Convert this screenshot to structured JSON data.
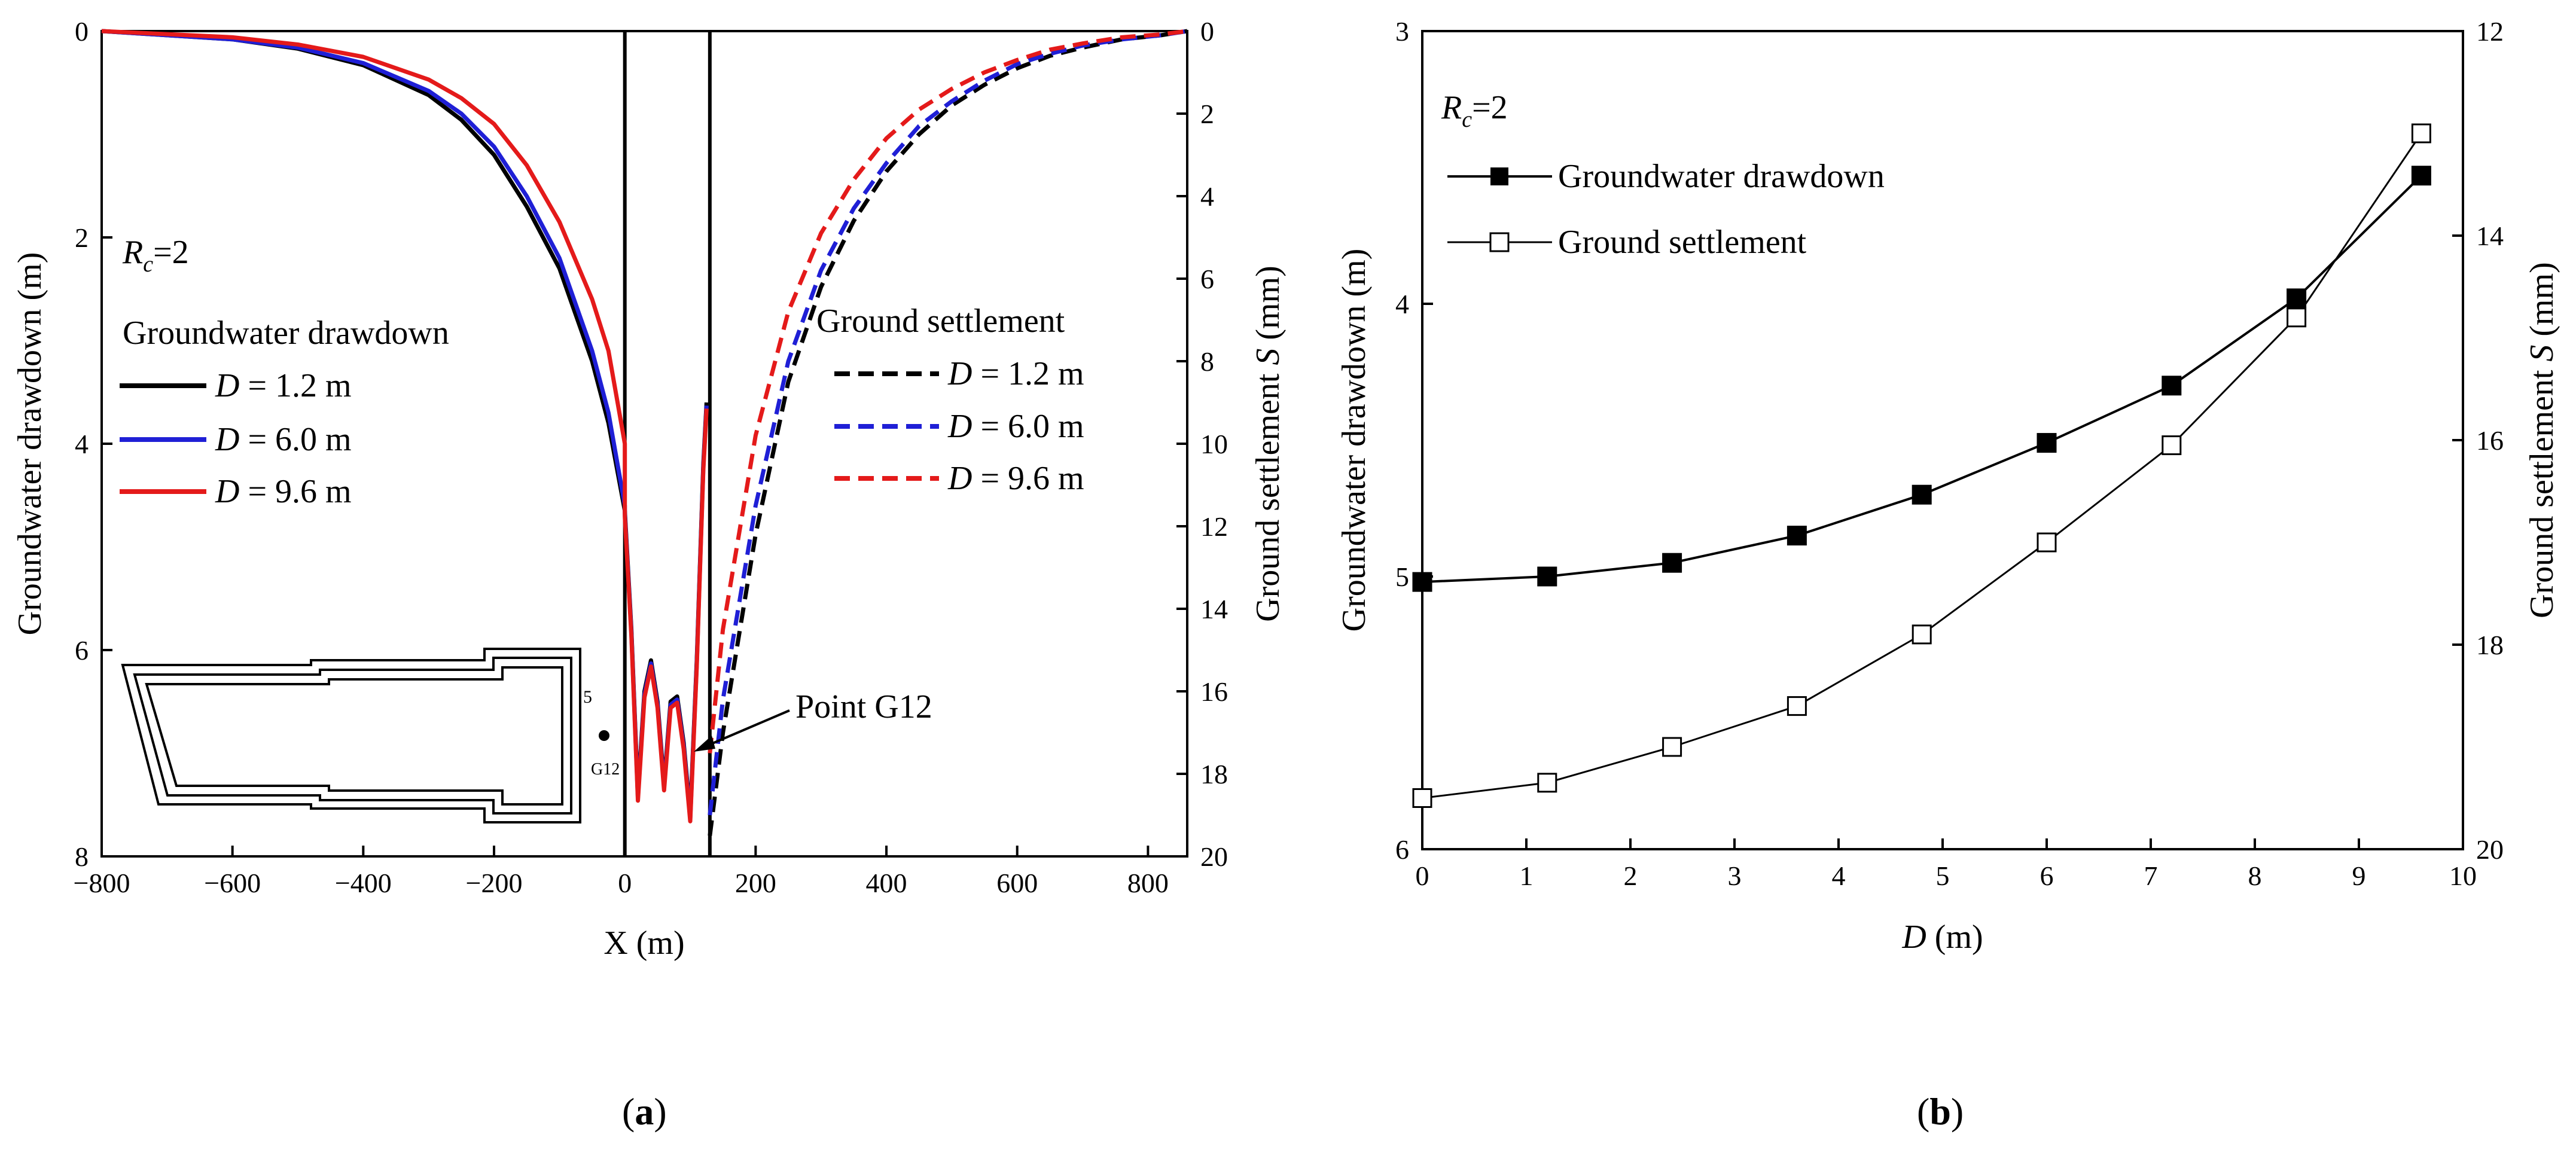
{
  "chart_data": [
    {
      "panel": "(a)",
      "panel_label": "a",
      "type": "line",
      "x": [
        -800,
        -700,
        -600,
        -500,
        -400,
        -300,
        -250,
        -200,
        -150,
        -100,
        -50,
        -25,
        0
      ],
      "ylim": [
        0,
        8
      ],
      "y2lim": [
        0,
        20
      ],
      "xlim": [
        -800,
        860
      ],
      "xlabel": "X (m)",
      "ylabel": "Groundwater drawdown (m)",
      "y2label_main": "Ground settlement ",
      "y2label_var": "S",
      "y2label_unit": " (mm)",
      "x_ticks": [
        "−800",
        "−600",
        "−400",
        "−200",
        "0",
        "200",
        "400",
        "600",
        "800"
      ],
      "x_tick_values": [
        -800,
        -600,
        -400,
        -200,
        0,
        200,
        400,
        600,
        800
      ],
      "y_ticks": [
        "0",
        "2",
        "4",
        "6",
        "8"
      ],
      "y_tick_values": [
        0,
        2,
        4,
        6,
        8
      ],
      "y2_ticks": [
        "0",
        "2",
        "4",
        "6",
        "8",
        "10",
        "12",
        "14",
        "16",
        "18",
        "20"
      ],
      "y2_tick_values": [
        0,
        2,
        4,
        6,
        8,
        10,
        12,
        14,
        16,
        18,
        20
      ],
      "rc_label_var": "R",
      "rc_label_sub": "c",
      "rc_label_val": "=2",
      "drawdown_legend_title": "Groundwater drawdown",
      "settlement_legend_title": "Ground settlement",
      "legend_var": "D",
      "annotation": "Point G12",
      "inset_labels": [
        "5",
        "G12"
      ],
      "wall_x": [
        0,
        130
      ],
      "drawdown_series": [
        {
          "name": "D = 1.2 m",
          "value_label": " = 1.2 m",
          "color": "#000000",
          "values": [
            0,
            0.04,
            0.08,
            0.17,
            0.33,
            0.62,
            0.86,
            1.2,
            1.7,
            2.3,
            3.2,
            3.8,
            4.65
          ]
        },
        {
          "name": "D = 6.0 m",
          "value_label": " = 6.0 m",
          "color": "#1f1fd6",
          "values": [
            0,
            0.04,
            0.08,
            0.16,
            0.31,
            0.58,
            0.8,
            1.12,
            1.6,
            2.2,
            3.1,
            3.7,
            4.6
          ]
        },
        {
          "name": "D = 9.6 m",
          "value_label": " = 9.6 m",
          "color": "#e41a1a",
          "values": [
            0,
            0.03,
            0.06,
            0.13,
            0.25,
            0.47,
            0.65,
            0.9,
            1.3,
            1.85,
            2.6,
            3.1,
            4.0
          ]
        }
      ],
      "pit_drawdown_x": [
        0,
        10,
        20,
        30,
        40,
        50,
        60,
        70,
        80,
        90,
        100,
        110,
        120,
        125
      ],
      "pit_drawdown": [
        4.65,
        5.8,
        7.4,
        6.4,
        6.1,
        6.5,
        7.3,
        6.5,
        6.45,
        6.9,
        7.6,
        6.1,
        4.2,
        3.6
      ],
      "settlement_x": [
        130,
        150,
        200,
        250,
        300,
        350,
        400,
        450,
        500,
        550,
        600,
        650,
        700,
        760,
        820,
        860
      ],
      "settlement_series": [
        {
          "name": "D = 1.2 m",
          "value_label": " = 1.2 m",
          "color": "#000000",
          "values": [
            19.5,
            17.0,
            12.2,
            8.5,
            6.2,
            4.6,
            3.4,
            2.5,
            1.8,
            1.3,
            0.9,
            0.6,
            0.4,
            0.2,
            0.1,
            0.0
          ]
        },
        {
          "name": "D = 6.0 m",
          "value_label": " = 6.0 m",
          "color": "#1f1fd6",
          "values": [
            19.0,
            16.2,
            11.5,
            8.0,
            5.8,
            4.3,
            3.2,
            2.3,
            1.7,
            1.2,
            0.8,
            0.55,
            0.35,
            0.2,
            0.1,
            0.0
          ]
        },
        {
          "name": "D = 9.6 m",
          "value_label": " = 9.6 m",
          "color": "#e41a1a",
          "values": [
            17.5,
            14.5,
            9.8,
            6.8,
            4.9,
            3.6,
            2.6,
            1.9,
            1.4,
            1.0,
            0.7,
            0.45,
            0.3,
            0.15,
            0.08,
            0.0
          ]
        }
      ]
    },
    {
      "panel": "(b)",
      "panel_label": "b",
      "type": "line",
      "x": [
        0,
        1.2,
        2.4,
        3.6,
        4.8,
        6.0,
        7.2,
        8.4,
        9.6
      ],
      "xlim": [
        0,
        10
      ],
      "ylim": [
        3,
        6
      ],
      "y2lim": [
        12,
        20
      ],
      "xlabel_var": "D",
      "xlabel_unit": " (m)",
      "ylabel": "Groundwater drawdown (m)",
      "y2label_main": "Ground settlement ",
      "y2label_var": "S",
      "y2label_unit": " (mm)",
      "x_ticks": [
        "0",
        "1",
        "2",
        "3",
        "4",
        "5",
        "6",
        "7",
        "8",
        "9",
        "10"
      ],
      "x_tick_values": [
        0,
        1,
        2,
        3,
        4,
        5,
        6,
        7,
        8,
        9,
        10
      ],
      "y_ticks": [
        "3",
        "4",
        "5",
        "6"
      ],
      "y_tick_values": [
        3,
        4,
        5,
        6
      ],
      "y2_ticks": [
        "12",
        "14",
        "16",
        "18",
        "20"
      ],
      "y2_tick_values": [
        12,
        14,
        16,
        18,
        20
      ],
      "rc_label_var": "R",
      "rc_label_sub": "c",
      "rc_label_val": "=2",
      "series": [
        {
          "name": "Groundwater drawdown",
          "axis": "left",
          "marker": "filled-square",
          "values": [
            5.02,
            5.0,
            4.95,
            4.85,
            4.7,
            4.51,
            4.3,
            3.98,
            3.53
          ]
        },
        {
          "name": "Ground settlement",
          "axis": "right",
          "marker": "open-square",
          "values": [
            19.5,
            19.35,
            19.0,
            18.6,
            17.9,
            17.0,
            16.05,
            14.8,
            13.0
          ]
        }
      ]
    }
  ]
}
